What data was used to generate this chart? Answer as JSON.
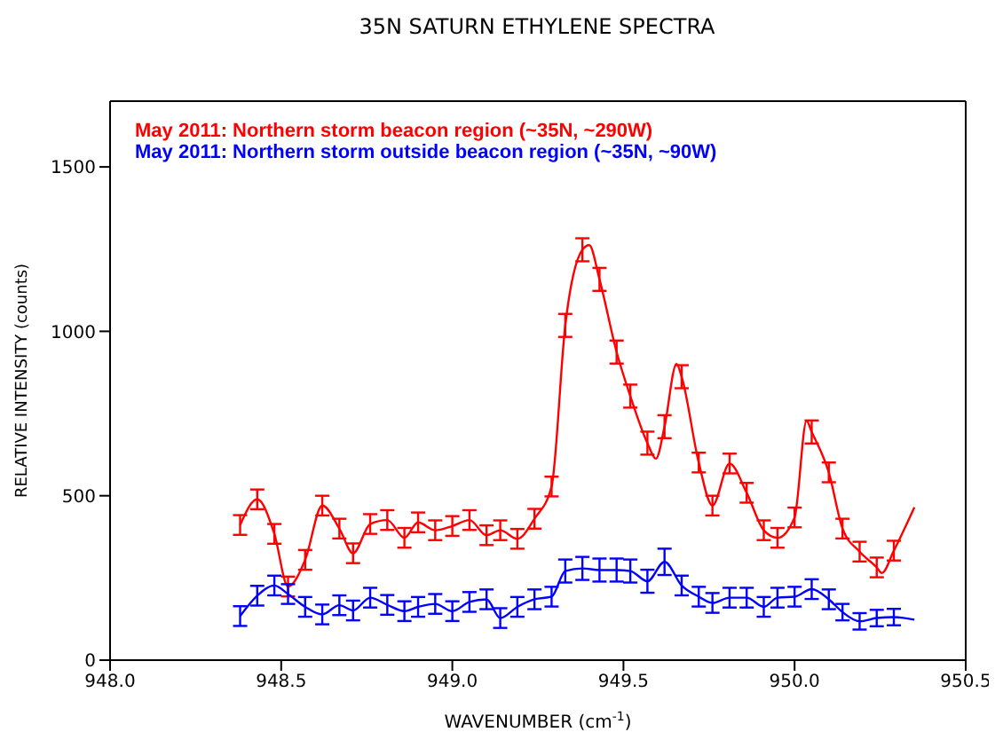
{
  "chart_data": {
    "type": "line",
    "title": "35N SATURN ETHYLENE SPECTRA",
    "xlabel": "WAVENUMBER (cm$^{-1}$)",
    "ylabel": "RELATIVE INTENSITY (counts)",
    "xlim": [
      948.0,
      950.5
    ],
    "xticks": [
      {
        "value": 948.0,
        "label": "948.0"
      },
      {
        "value": 948.5,
        "label": "948.5"
      },
      {
        "value": 949.0,
        "label": "949.0"
      },
      {
        "value": 949.5,
        "label": "949.5"
      },
      {
        "value": 950.0,
        "label": "950.0"
      },
      {
        "value": 950.5,
        "label": "950.5"
      }
    ],
    "ylim": [
      0,
      1700
    ],
    "yticks": [
      0,
      500,
      1000,
      1500
    ],
    "grid": false,
    "legend": "top left",
    "marker": "none",
    "line_style": "solid",
    "series": [
      {
        "name": "May 2011: Northern storm beacon region (~35N, ~290W)",
        "color": "#ff0000",
        "x": [
          948.38,
          948.43,
          948.48,
          948.52,
          948.57,
          948.62,
          948.67,
          948.71,
          948.76,
          948.81,
          948.86,
          948.9,
          948.95,
          949.0,
          949.05,
          949.1,
          949.14,
          949.19,
          949.24,
          949.29,
          949.33,
          949.38,
          949.4,
          949.43,
          949.48,
          949.52,
          949.57,
          949.595,
          949.62,
          949.655,
          949.67,
          949.72,
          949.76,
          949.81,
          949.86,
          949.91,
          949.95,
          950.0,
          950.035,
          950.05,
          950.1,
          950.14,
          950.19,
          950.24,
          950.255,
          950.29,
          950.35
        ],
        "values": [
          411,
          489,
          384,
          224,
          305,
          470,
          400,
          325,
          414,
          426,
          372,
          419,
          395,
          408,
          426,
          380,
          395,
          369,
          430,
          528,
          1018,
          1248,
          1262,
          1158,
          937,
          803,
          660,
          613,
          710,
          901,
          862,
          601,
          470,
          598,
          509,
          395,
          372,
          434,
          728,
          694,
          571,
          400,
          330,
          282,
          265,
          333,
          465
        ],
        "errors": [
          30,
          30,
          30,
          30,
          30,
          30,
          30,
          30,
          30,
          30,
          30,
          30,
          30,
          30,
          30,
          30,
          30,
          30,
          30,
          30,
          35,
          35,
          null,
          35,
          35,
          35,
          35,
          null,
          35,
          null,
          35,
          30,
          30,
          30,
          30,
          30,
          30,
          30,
          null,
          35,
          30,
          30,
          30,
          30,
          null,
          30,
          null
        ]
      },
      {
        "name": "May 2011: Northern storm outside beacon region (~35N, ~90W)",
        "color": "#0000ff",
        "x": [
          948.38,
          948.43,
          948.48,
          948.52,
          948.57,
          948.62,
          948.67,
          948.71,
          948.76,
          948.81,
          948.86,
          948.9,
          948.95,
          949.0,
          949.05,
          949.1,
          949.14,
          949.19,
          949.24,
          949.29,
          949.33,
          949.38,
          949.43,
          949.48,
          949.52,
          949.57,
          949.62,
          949.67,
          949.72,
          949.76,
          949.81,
          949.86,
          949.91,
          949.95,
          950.0,
          950.05,
          950.1,
          950.14,
          950.19,
          950.24,
          950.29,
          950.35
        ],
        "values": [
          134,
          196,
          227,
          201,
          162,
          139,
          167,
          151,
          190,
          168,
          149,
          162,
          171,
          149,
          177,
          185,
          128,
          162,
          185,
          193,
          271,
          279,
          274,
          274,
          271,
          240,
          299,
          227,
          193,
          174,
          190,
          190,
          162,
          190,
          193,
          216,
          185,
          146,
          118,
          128,
          131,
          123
        ],
        "errors": [
          30,
          30,
          30,
          30,
          30,
          30,
          30,
          30,
          30,
          30,
          30,
          30,
          30,
          30,
          30,
          30,
          30,
          30,
          30,
          30,
          35,
          35,
          35,
          35,
          35,
          35,
          40,
          30,
          30,
          30,
          30,
          30,
          30,
          30,
          30,
          30,
          30,
          25,
          25,
          25,
          25,
          null
        ]
      }
    ]
  }
}
